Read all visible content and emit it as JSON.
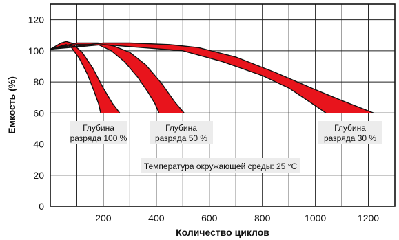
{
  "chart_data": {
    "type": "area",
    "title": "",
    "xlabel": "Количество циклов",
    "ylabel": "Емкость (%)",
    "xlim": [
      0,
      1300
    ],
    "ylim": [
      0,
      130
    ],
    "x_ticks": [
      200,
      400,
      600,
      800,
      1000,
      1200
    ],
    "y_ticks": [
      0,
      20,
      40,
      60,
      80,
      100,
      120
    ],
    "grid": true,
    "colors": {
      "band": "#e8141c",
      "outline": "#111111",
      "label_bg": "#ececec"
    },
    "series": [
      {
        "label_lines": [
          "Глубина",
          "разряда 100 %"
        ],
        "upper": [
          [
            0,
            101
          ],
          [
            40,
            105
          ],
          [
            60,
            106
          ],
          [
            80,
            105
          ],
          [
            120,
            99
          ],
          [
            160,
            89
          ],
          [
            200,
            76
          ],
          [
            235,
            66
          ],
          [
            262,
            60
          ]
        ],
        "lower": [
          [
            0,
            101
          ],
          [
            40,
            103
          ],
          [
            60,
            104
          ],
          [
            80,
            102
          ],
          [
            110,
            95
          ],
          [
            140,
            85
          ],
          [
            165,
            74
          ],
          [
            182,
            66
          ],
          [
            190,
            60
          ]
        ]
      },
      {
        "label_lines": [
          "Глубина",
          "разряда  50 %"
        ],
        "upper": [
          [
            0,
            101
          ],
          [
            100,
            105
          ],
          [
            180,
            105
          ],
          [
            240,
            103
          ],
          [
            300,
            99
          ],
          [
            360,
            91
          ],
          [
            420,
            79
          ],
          [
            470,
            67
          ],
          [
            505,
            60
          ]
        ],
        "lower": [
          [
            0,
            101
          ],
          [
            100,
            104
          ],
          [
            180,
            104
          ],
          [
            230,
            100
          ],
          [
            280,
            93
          ],
          [
            330,
            83
          ],
          [
            370,
            73
          ],
          [
            395,
            66
          ],
          [
            410,
            60
          ]
        ]
      },
      {
        "label_lines": [
          "Глубина",
          "разряда 30 %"
        ],
        "upper": [
          [
            0,
            101
          ],
          [
            200,
            105
          ],
          [
            300,
            105
          ],
          [
            450,
            104
          ],
          [
            560,
            102
          ],
          [
            700,
            96
          ],
          [
            850,
            86
          ],
          [
            1000,
            75
          ],
          [
            1100,
            68
          ],
          [
            1220,
            60
          ]
        ],
        "lower": [
          [
            0,
            101
          ],
          [
            200,
            104
          ],
          [
            350,
            102
          ],
          [
            500,
            100
          ],
          [
            650,
            93
          ],
          [
            800,
            84
          ],
          [
            900,
            76
          ],
          [
            980,
            67
          ],
          [
            1040,
            60
          ]
        ]
      }
    ],
    "annotation": "Температура окружающей среды: 25 °С"
  }
}
